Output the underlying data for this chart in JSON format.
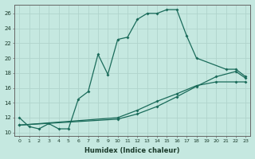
{
  "xlabel": "Humidex (Indice chaleur)",
  "ylabel": "",
  "xlim": [
    -0.5,
    23.5
  ],
  "ylim": [
    9.5,
    27.2
  ],
  "xticks": [
    0,
    1,
    2,
    3,
    4,
    5,
    6,
    7,
    8,
    9,
    10,
    11,
    12,
    13,
    14,
    15,
    16,
    17,
    18,
    19,
    20,
    21,
    22,
    23
  ],
  "yticks": [
    10,
    12,
    14,
    16,
    18,
    20,
    22,
    24,
    26
  ],
  "bg_color": "#c5e8e0",
  "grid_color": "#aacccc",
  "line_color": "#1a6b5a",
  "line1_x": [
    0,
    1,
    2,
    3,
    4,
    5,
    6,
    7,
    8,
    9,
    10,
    11,
    12,
    13,
    14,
    15,
    16,
    17,
    18,
    21,
    22,
    23
  ],
  "line1_y": [
    12.0,
    10.8,
    10.5,
    11.2,
    10.5,
    10.5,
    14.5,
    15.5,
    20.5,
    17.8,
    22.5,
    22.8,
    25.2,
    26.0,
    26.0,
    26.5,
    26.5,
    23.0,
    20.0,
    18.5,
    18.5,
    17.5
  ],
  "line2_x": [
    0,
    10,
    12,
    14,
    16,
    18,
    20,
    22,
    23
  ],
  "line2_y": [
    11.0,
    11.8,
    12.5,
    13.5,
    14.8,
    16.2,
    17.5,
    18.2,
    17.3
  ],
  "line3_x": [
    0,
    10,
    12,
    14,
    16,
    18,
    20,
    22,
    23
  ],
  "line3_y": [
    11.0,
    12.0,
    13.0,
    14.2,
    15.2,
    16.3,
    16.8,
    16.8,
    16.8
  ]
}
